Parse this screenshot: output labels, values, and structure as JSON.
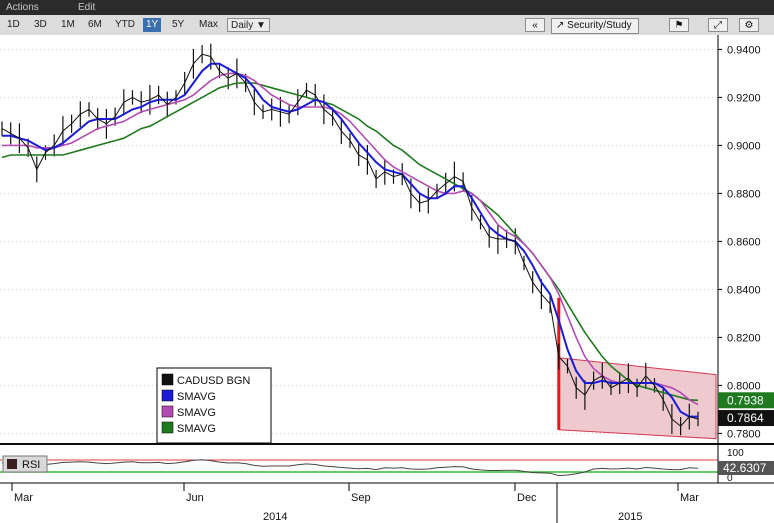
{
  "menu": {
    "actions": "Actions",
    "edit": "Edit"
  },
  "toolbar": {
    "ranges": [
      "1D",
      "3D",
      "1M",
      "6M",
      "YTD",
      "1Y",
      "5Y",
      "Max"
    ],
    "active_range": "1Y",
    "frequency": "Daily ▼",
    "collapse": "«",
    "security_study": "Security/Study"
  },
  "colors": {
    "bg": "#ffffff",
    "price": "#111111",
    "sma_fast": "#1b1bd8",
    "sma_mid": "#b44bb4",
    "sma_slow": "#1f7a1f",
    "channel_fill": "#e8b8bf",
    "channel_line": "#d63a52",
    "rsi_line": "#444444",
    "rsi_hi": "#e33b3b",
    "rsi_lo": "#2fbf2f"
  },
  "legend": [
    {
      "label": "CADUSD BGN",
      "color": "#111111"
    },
    {
      "label": "SMAVG",
      "color": "#1b1bd8"
    },
    {
      "label": "SMAVG",
      "color": "#b44bb4"
    },
    {
      "label": "SMAVG",
      "color": "#1f7a1f"
    }
  ],
  "rsi_panel": {
    "label": "RSI",
    "ticks": [
      "100",
      "0"
    ],
    "last_value": "42.6307"
  },
  "last_values": [
    {
      "value": "0.7938",
      "color": "#1f7a1f"
    },
    {
      "value": "0.7864",
      "color": "#111111"
    }
  ],
  "chart_data": {
    "type": "line",
    "ylim": [
      0.776,
      0.946
    ],
    "yticks": [
      "0.9400",
      "0.9200",
      "0.9000",
      "0.8800",
      "0.8600",
      "0.8400",
      "0.8200",
      "0.8000",
      "0.7800"
    ],
    "x_month_labels": [
      "Mar",
      "Jun",
      "Sep",
      "Dec",
      "Mar"
    ],
    "x_year_labels": [
      "2014",
      "2015"
    ],
    "series": [
      {
        "name": "CADUSD BGN",
        "values": [
          0.907,
          0.905,
          0.903,
          0.899,
          0.89,
          0.897,
          0.9,
          0.906,
          0.909,
          0.913,
          0.915,
          0.911,
          0.909,
          0.912,
          0.918,
          0.92,
          0.918,
          0.919,
          0.921,
          0.917,
          0.92,
          0.926,
          0.934,
          0.938,
          0.937,
          0.931,
          0.928,
          0.93,
          0.926,
          0.918,
          0.914,
          0.915,
          0.914,
          0.913,
          0.918,
          0.923,
          0.921,
          0.915,
          0.912,
          0.906,
          0.902,
          0.896,
          0.894,
          0.886,
          0.889,
          0.887,
          0.888,
          0.88,
          0.876,
          0.877,
          0.881,
          0.884,
          0.887,
          0.885,
          0.874,
          0.868,
          0.862,
          0.861,
          0.861,
          0.86,
          0.851,
          0.843,
          0.838,
          0.834,
          0.812,
          0.808,
          0.799,
          0.796,
          0.802,
          0.804,
          0.799,
          0.801,
          0.803,
          0.799,
          0.804,
          0.8,
          0.794,
          0.786,
          0.783,
          0.787,
          0.786
        ]
      },
      {
        "name": "SMAVG",
        "values": [
          0.904,
          0.904,
          0.903,
          0.902,
          0.9,
          0.898,
          0.899,
          0.901,
          0.904,
          0.907,
          0.91,
          0.911,
          0.911,
          0.911,
          0.913,
          0.915,
          0.916,
          0.918,
          0.919,
          0.919,
          0.919,
          0.921,
          0.926,
          0.931,
          0.934,
          0.934,
          0.932,
          0.93,
          0.928,
          0.924,
          0.919,
          0.916,
          0.915,
          0.914,
          0.915,
          0.917,
          0.919,
          0.918,
          0.915,
          0.911,
          0.906,
          0.901,
          0.897,
          0.893,
          0.89,
          0.889,
          0.888,
          0.884,
          0.88,
          0.878,
          0.878,
          0.88,
          0.883,
          0.883,
          0.878,
          0.872,
          0.866,
          0.863,
          0.861,
          0.86,
          0.856,
          0.85,
          0.843,
          0.838,
          0.827,
          0.815,
          0.806,
          0.801,
          0.801,
          0.802,
          0.801,
          0.801,
          0.801,
          0.801,
          0.801,
          0.801,
          0.799,
          0.795,
          0.789,
          0.787,
          0.787
        ]
      },
      {
        "name": "SMAVG",
        "values": [
          0.9,
          0.9,
          0.9,
          0.9,
          0.899,
          0.899,
          0.899,
          0.9,
          0.901,
          0.903,
          0.905,
          0.907,
          0.908,
          0.909,
          0.91,
          0.912,
          0.914,
          0.915,
          0.916,
          0.917,
          0.918,
          0.919,
          0.921,
          0.924,
          0.927,
          0.929,
          0.93,
          0.93,
          0.929,
          0.927,
          0.924,
          0.921,
          0.919,
          0.917,
          0.916,
          0.916,
          0.916,
          0.916,
          0.915,
          0.913,
          0.91,
          0.906,
          0.902,
          0.898,
          0.894,
          0.891,
          0.889,
          0.887,
          0.885,
          0.883,
          0.881,
          0.88,
          0.88,
          0.881,
          0.88,
          0.877,
          0.872,
          0.867,
          0.864,
          0.862,
          0.859,
          0.855,
          0.85,
          0.845,
          0.838,
          0.829,
          0.82,
          0.812,
          0.807,
          0.804,
          0.802,
          0.801,
          0.801,
          0.801,
          0.801,
          0.801,
          0.8,
          0.799,
          0.797,
          0.794,
          0.792
        ]
      },
      {
        "name": "SMAVG",
        "values": [
          0.895,
          0.896,
          0.896,
          0.896,
          0.896,
          0.896,
          0.896,
          0.896,
          0.897,
          0.898,
          0.899,
          0.9,
          0.901,
          0.902,
          0.903,
          0.905,
          0.907,
          0.908,
          0.91,
          0.912,
          0.914,
          0.916,
          0.918,
          0.92,
          0.922,
          0.924,
          0.925,
          0.926,
          0.926,
          0.926,
          0.925,
          0.924,
          0.923,
          0.922,
          0.921,
          0.92,
          0.919,
          0.918,
          0.917,
          0.915,
          0.913,
          0.911,
          0.908,
          0.906,
          0.903,
          0.9,
          0.898,
          0.895,
          0.892,
          0.89,
          0.888,
          0.886,
          0.884,
          0.882,
          0.88,
          0.877,
          0.874,
          0.871,
          0.867,
          0.863,
          0.859,
          0.855,
          0.85,
          0.845,
          0.84,
          0.834,
          0.828,
          0.822,
          0.817,
          0.812,
          0.808,
          0.805,
          0.802,
          0.8,
          0.799,
          0.798,
          0.797,
          0.796,
          0.795,
          0.794,
          0.7938
        ]
      }
    ],
    "rsi_values": [
      60,
      58,
      57,
      54,
      47,
      55,
      58,
      62,
      63,
      64,
      63,
      60,
      58,
      60,
      63,
      64,
      61,
      61,
      62,
      58,
      60,
      64,
      69,
      71,
      68,
      63,
      60,
      61,
      58,
      52,
      49,
      50,
      50,
      50,
      54,
      57,
      55,
      50,
      48,
      45,
      43,
      41,
      42,
      38,
      44,
      43,
      44,
      40,
      39,
      40,
      44,
      46,
      48,
      47,
      40,
      37,
      35,
      35,
      36,
      36,
      32,
      28,
      27,
      26,
      18,
      20,
      24,
      30,
      40,
      42,
      40,
      41,
      43,
      40,
      45,
      43,
      40,
      38,
      38,
      44,
      42.63
    ]
  }
}
